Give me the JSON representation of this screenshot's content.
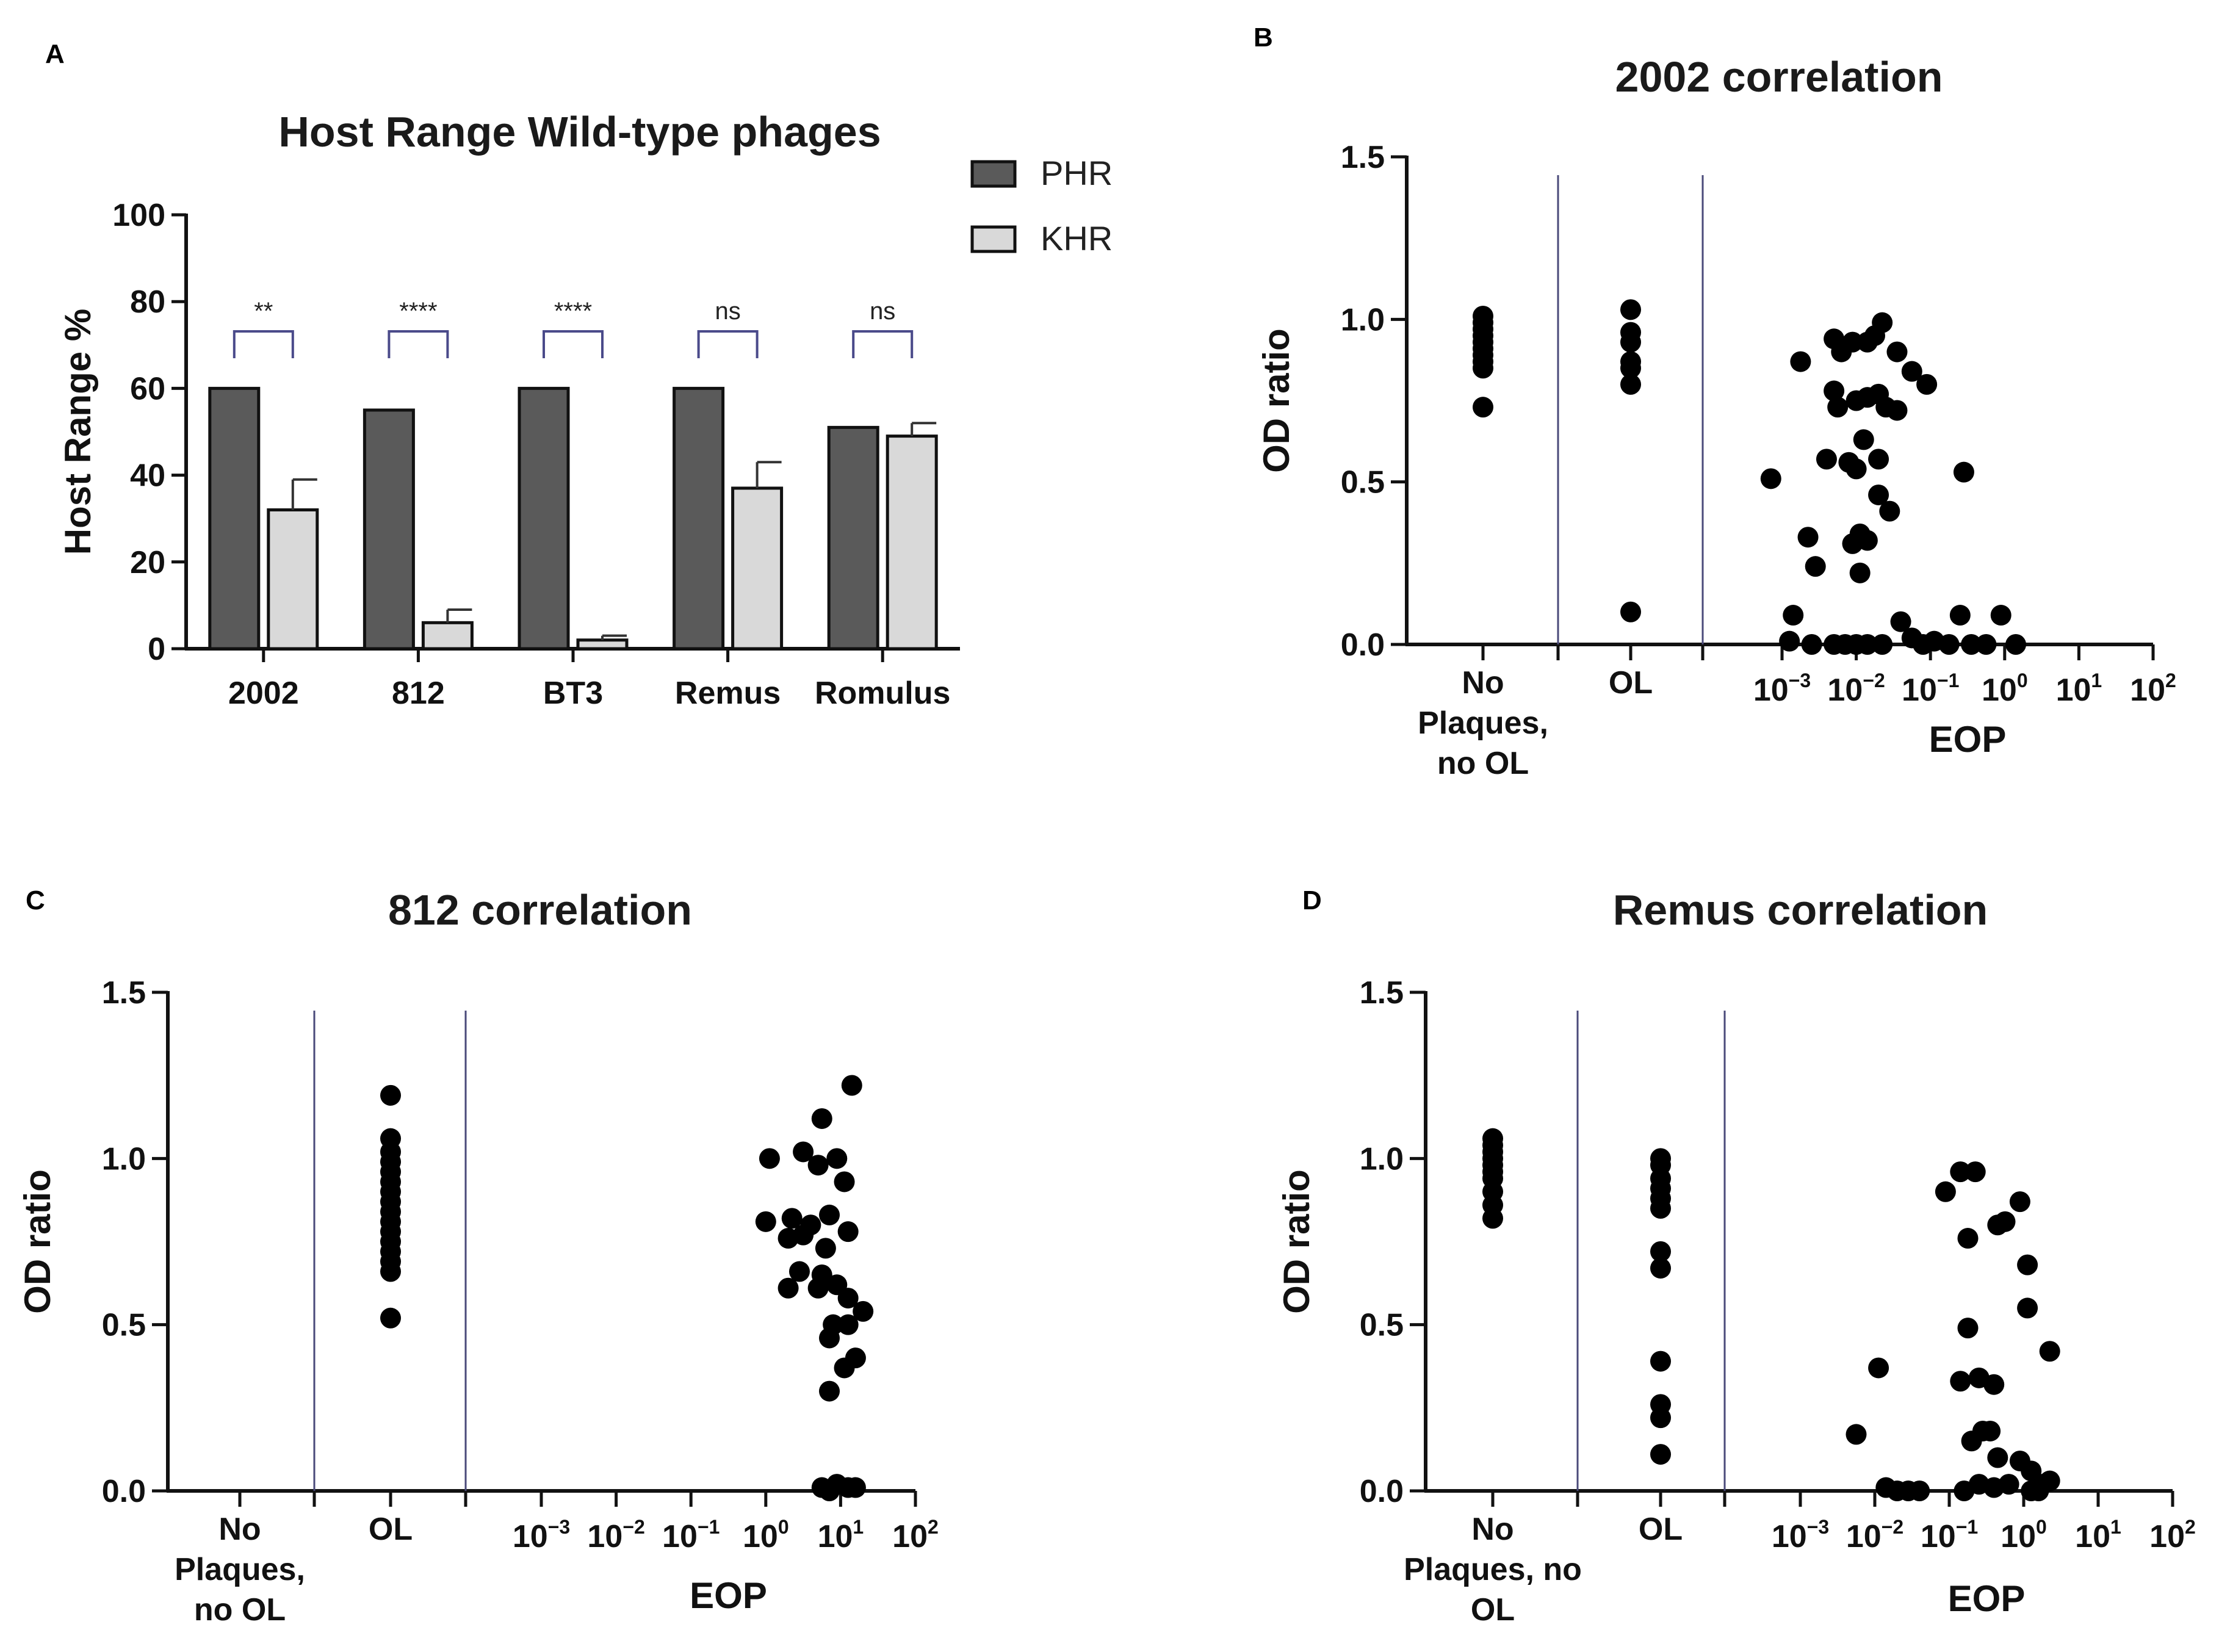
{
  "chart_data": [
    {
      "panel": "A",
      "type": "bar",
      "title": "Host Range Wild-type phages",
      "xlabel": "",
      "ylabel": "Host  Range  %",
      "ylim": [
        0,
        100
      ],
      "yticks": [
        "0",
        "20",
        "40",
        "60",
        "80",
        "100"
      ],
      "categories": [
        "2002",
        "812",
        "BT3",
        "Remus",
        "Romulus"
      ],
      "series": [
        {
          "name": "PHR",
          "color": "#5a5a5a",
          "values": [
            60,
            55,
            60,
            60,
            51
          ],
          "errors": [
            0,
            0,
            0,
            0,
            0
          ]
        },
        {
          "name": "KHR",
          "color": "#d9d9d9",
          "values": [
            32,
            6,
            2,
            37,
            49
          ],
          "errors": [
            7,
            3,
            1,
            6,
            3
          ]
        }
      ],
      "significance": [
        "**",
        "****",
        "****",
        "ns",
        "ns"
      ],
      "legend": "top-right"
    },
    {
      "panel": "B",
      "type": "scatter",
      "title": "2002 correlation",
      "ylabel": "OD ratio",
      "xlabel": "EOP",
      "ylim": [
        0,
        1.5
      ],
      "yticks": [
        "0.0",
        "0.5",
        "1.0",
        "1.5"
      ],
      "categories": [
        "No\nPlaques,\nno OL",
        "OL"
      ],
      "eop_ticks": [
        -3,
        -2,
        -1,
        0,
        1,
        2
      ],
      "no_plaques_no_ol": [
        1.01,
        0.99,
        0.97,
        0.95,
        0.93,
        0.91,
        0.89,
        0.87,
        0.85,
        0.73
      ],
      "ol": [
        1.03,
        0.96,
        0.93,
        0.87,
        0.85,
        0.8,
        0.1
      ],
      "eop_points": [
        [
          -3.15,
          0.51
        ],
        [
          -2.75,
          0.87
        ],
        [
          -2.65,
          0.33
        ],
        [
          -2.55,
          0.24
        ],
        [
          -2.85,
          0.09
        ],
        [
          -2.9,
          0.01
        ],
        [
          -2.6,
          0.0
        ],
        [
          -2.3,
          0.94
        ],
        [
          -2.2,
          0.9
        ],
        [
          -2.05,
          0.93
        ],
        [
          -1.85,
          0.93
        ],
        [
          -1.75,
          0.95
        ],
        [
          -1.65,
          0.99
        ],
        [
          -1.45,
          0.9
        ],
        [
          -1.25,
          0.84
        ],
        [
          -1.05,
          0.8
        ],
        [
          -2.3,
          0.78
        ],
        [
          -2.0,
          0.75
        ],
        [
          -1.85,
          0.76
        ],
        [
          -1.7,
          0.77
        ],
        [
          -2.25,
          0.73
        ],
        [
          -1.6,
          0.73
        ],
        [
          -1.45,
          0.72
        ],
        [
          -1.9,
          0.63
        ],
        [
          -2.4,
          0.57
        ],
        [
          -2.1,
          0.56
        ],
        [
          -2.0,
          0.54
        ],
        [
          -1.7,
          0.57
        ],
        [
          -0.55,
          0.53
        ],
        [
          -1.7,
          0.46
        ],
        [
          -1.55,
          0.41
        ],
        [
          -1.95,
          0.34
        ],
        [
          -2.05,
          0.31
        ],
        [
          -1.85,
          0.32
        ],
        [
          -1.95,
          0.22
        ],
        [
          -2.3,
          0.0
        ],
        [
          -2.15,
          0.0
        ],
        [
          -2.0,
          0.0
        ],
        [
          -1.85,
          0.0
        ],
        [
          -1.65,
          0.0
        ],
        [
          -1.4,
          0.07
        ],
        [
          -1.25,
          0.02
        ],
        [
          -1.1,
          0.0
        ],
        [
          -0.95,
          0.01
        ],
        [
          -0.75,
          0.0
        ],
        [
          -0.6,
          0.09
        ],
        [
          -0.45,
          0.0
        ],
        [
          -0.25,
          0.0
        ],
        [
          -0.05,
          0.09
        ],
        [
          0.15,
          0.0
        ]
      ]
    },
    {
      "panel": "C",
      "type": "scatter",
      "title": "812 correlation",
      "ylabel": "OD ratio",
      "xlabel": "EOP",
      "ylim": [
        0,
        1.5
      ],
      "yticks": [
        "0.0",
        "0.5",
        "1.0",
        "1.5"
      ],
      "categories": [
        "No\nPlaques,\nno OL",
        "OL"
      ],
      "eop_ticks": [
        -3,
        -2,
        -1,
        0,
        1,
        2
      ],
      "no_plaques_no_ol": [],
      "ol": [
        1.19,
        1.06,
        1.02,
        0.99,
        0.96,
        0.93,
        0.9,
        0.87,
        0.84,
        0.81,
        0.78,
        0.75,
        0.72,
        0.69,
        0.66,
        0.52
      ],
      "eop_points": [
        [
          0.05,
          1.0
        ],
        [
          0.5,
          1.02
        ],
        [
          0.7,
          0.98
        ],
        [
          0.95,
          1.0
        ],
        [
          0.75,
          1.12
        ],
        [
          1.15,
          1.22
        ],
        [
          1.05,
          0.93
        ],
        [
          0.0,
          0.81
        ],
        [
          0.35,
          0.82
        ],
        [
          0.6,
          0.8
        ],
        [
          0.85,
          0.83
        ],
        [
          0.5,
          0.77
        ],
        [
          1.1,
          0.78
        ],
        [
          0.3,
          0.76
        ],
        [
          0.8,
          0.73
        ],
        [
          0.45,
          0.66
        ],
        [
          0.75,
          0.65
        ],
        [
          0.3,
          0.61
        ],
        [
          0.7,
          0.61
        ],
        [
          0.95,
          0.62
        ],
        [
          1.1,
          0.58
        ],
        [
          1.3,
          0.54
        ],
        [
          0.9,
          0.5
        ],
        [
          1.1,
          0.5
        ],
        [
          0.85,
          0.46
        ],
        [
          1.2,
          0.4
        ],
        [
          1.05,
          0.37
        ],
        [
          0.85,
          0.3
        ],
        [
          0.75,
          0.01
        ],
        [
          0.95,
          0.02
        ],
        [
          1.1,
          0.01
        ],
        [
          1.2,
          0.01
        ],
        [
          0.85,
          0.0
        ]
      ]
    },
    {
      "panel": "D",
      "type": "scatter",
      "title": "Remus correlation",
      "ylabel": "OD ratio",
      "xlabel": "EOP",
      "ylim": [
        0,
        1.5
      ],
      "yticks": [
        "0.0",
        "0.5",
        "1.0",
        "1.5"
      ],
      "categories": [
        "No\nPlaques, no\nOL",
        "OL"
      ],
      "eop_ticks": [
        -3,
        -2,
        -1,
        0,
        1,
        2
      ],
      "no_plaques_no_ol": [
        1.06,
        1.04,
        1.02,
        1.0,
        0.98,
        0.96,
        0.94,
        0.9,
        0.86,
        0.82
      ],
      "ol": [
        1.0,
        0.98,
        0.94,
        0.91,
        0.88,
        0.85,
        0.72,
        0.67,
        0.39,
        0.26,
        0.22,
        0.11
      ],
      "eop_points": [
        [
          -2.25,
          0.17
        ],
        [
          -1.95,
          0.37
        ],
        [
          -1.85,
          0.01
        ],
        [
          -1.7,
          0.0
        ],
        [
          -1.55,
          0.0
        ],
        [
          -1.4,
          0.0
        ],
        [
          -1.05,
          0.9
        ],
        [
          -0.85,
          0.96
        ],
        [
          -0.65,
          0.96
        ],
        [
          -0.35,
          0.8
        ],
        [
          -0.25,
          0.81
        ],
        [
          -0.05,
          0.87
        ],
        [
          -0.75,
          0.76
        ],
        [
          0.05,
          0.68
        ],
        [
          -0.75,
          0.49
        ],
        [
          0.05,
          0.55
        ],
        [
          0.35,
          0.42
        ],
        [
          -0.85,
          0.33
        ],
        [
          -0.6,
          0.34
        ],
        [
          -0.4,
          0.32
        ],
        [
          -0.55,
          0.18
        ],
        [
          -0.45,
          0.18
        ],
        [
          -0.7,
          0.15
        ],
        [
          -0.35,
          0.1
        ],
        [
          -0.05,
          0.09
        ],
        [
          0.1,
          0.06
        ],
        [
          -0.6,
          0.02
        ],
        [
          -0.4,
          0.01
        ],
        [
          -0.2,
          0.02
        ],
        [
          0.1,
          0.0
        ],
        [
          0.25,
          0.02
        ],
        [
          0.35,
          0.03
        ],
        [
          -0.8,
          0.0
        ],
        [
          0.2,
          0.0
        ]
      ]
    }
  ],
  "panel_letters": [
    "A",
    "B",
    "C",
    "D"
  ]
}
